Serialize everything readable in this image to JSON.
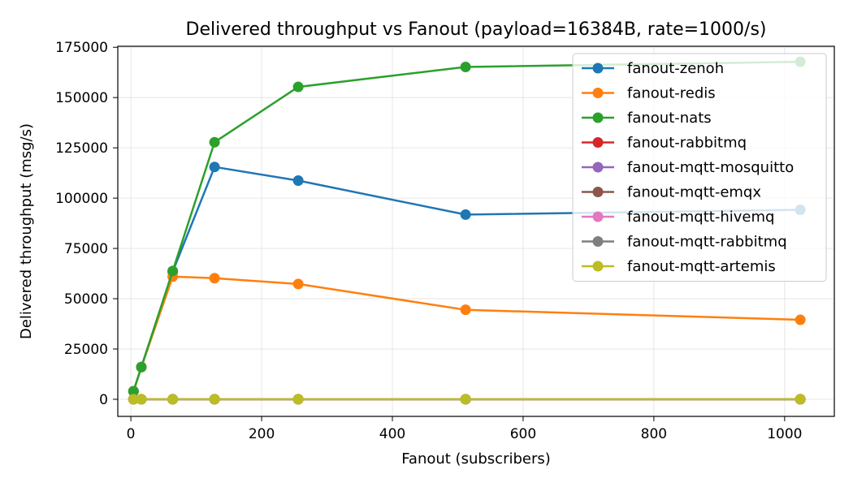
{
  "chart_data": {
    "type": "line",
    "title": "Delivered throughput vs Fanout (payload=16384B, rate=1000/s)",
    "xlabel": "Fanout (subscribers)",
    "ylabel": "Delivered throughput (msg/s)",
    "xlim": [
      -20,
      1076
    ],
    "ylim": [
      -8500,
      175500
    ],
    "xticks": [
      0,
      200,
      400,
      600,
      800,
      1000
    ],
    "yticks": [
      0,
      25000,
      50000,
      75000,
      100000,
      125000,
      150000,
      175000
    ],
    "grid": true,
    "legend_position": "top-right",
    "x": [
      4,
      16,
      64,
      128,
      256,
      512,
      1024
    ],
    "series": [
      {
        "name": "fanout-zenoh",
        "color": "#1f77b4",
        "values": [
          4000,
          16000,
          63500,
          115500,
          108700,
          91800,
          94200
        ]
      },
      {
        "name": "fanout-redis",
        "color": "#ff7f0e",
        "values": [
          4000,
          16000,
          61000,
          60200,
          57300,
          44500,
          39500
        ]
      },
      {
        "name": "fanout-nats",
        "color": "#2ca02c",
        "values": [
          4000,
          16000,
          63800,
          127800,
          155300,
          165200,
          167800
        ]
      },
      {
        "name": "fanout-rabbitmq",
        "color": "#d62728",
        "values": [
          0,
          0,
          0,
          0,
          0,
          0,
          0
        ]
      },
      {
        "name": "fanout-mqtt-mosquitto",
        "color": "#9467bd",
        "values": [
          0,
          0,
          0,
          0,
          0,
          0,
          0
        ]
      },
      {
        "name": "fanout-mqtt-emqx",
        "color": "#8c564b",
        "values": [
          0,
          0,
          0,
          0,
          0,
          0,
          0
        ]
      },
      {
        "name": "fanout-mqtt-hivemq",
        "color": "#e377c2",
        "values": [
          0,
          0,
          0,
          0,
          0,
          0,
          0
        ]
      },
      {
        "name": "fanout-mqtt-rabbitmq",
        "color": "#7f7f7f",
        "values": [
          0,
          0,
          0,
          0,
          0,
          0,
          0
        ]
      },
      {
        "name": "fanout-mqtt-artemis",
        "color": "#bcbd22",
        "values": [
          0,
          0,
          0,
          0,
          0,
          0,
          0
        ]
      }
    ]
  }
}
